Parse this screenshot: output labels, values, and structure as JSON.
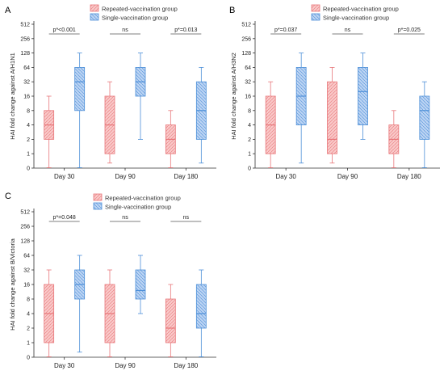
{
  "legend": {
    "repeated": "Repeated-vaccination group",
    "single": "Single-vaccination group"
  },
  "colors": {
    "repeated_fill": "#f9c9c9",
    "repeated_stroke": "#e8777a",
    "single_fill": "#bcd4f3",
    "single_stroke": "#4d8fd8",
    "axis": "#333333"
  },
  "chart_data": [
    {
      "panel": "A",
      "type": "box",
      "ylabel": "HAI fold change against A/H1N1",
      "yscale": "log2",
      "ylim": [
        0,
        512
      ],
      "yticks": [
        "0",
        "1",
        "2",
        "4",
        "8",
        "16",
        "32",
        "64",
        "128",
        "256",
        "512"
      ],
      "categories": [
        "Day 30",
        "Day 90",
        "Day 180"
      ],
      "series": [
        {
          "name": "Repeated-vaccination group",
          "boxes": [
            {
              "min": 0.03,
              "q1": 2,
              "median": 4,
              "q3": 8,
              "max": 16
            },
            {
              "min": 0.35,
              "q1": 1,
              "median": 4,
              "q3": 16,
              "max": 32
            },
            {
              "min": 0.03,
              "q1": 1,
              "median": 2,
              "q3": 4,
              "max": 8
            }
          ]
        },
        {
          "name": "Single-vaccination group",
          "boxes": [
            {
              "min": 0.03,
              "q1": 8,
              "median": 32,
              "q3": 64,
              "max": 128
            },
            {
              "min": 2,
              "q1": 16,
              "median": 32,
              "q3": 64,
              "max": 128
            },
            {
              "min": 0.35,
              "q1": 2,
              "median": 8,
              "q3": 32,
              "max": 64
            }
          ]
        }
      ],
      "annotations": [
        "p*<0.001",
        "ns",
        "p*=0.013"
      ]
    },
    {
      "panel": "B",
      "type": "box",
      "ylabel": "HAI fold change against A/H3N2",
      "yscale": "log2",
      "ylim": [
        0,
        512
      ],
      "yticks": [
        "0",
        "1",
        "2",
        "4",
        "8",
        "16",
        "32",
        "64",
        "128",
        "256",
        "512"
      ],
      "categories": [
        "Day 30",
        "Day 90",
        "Day 180"
      ],
      "series": [
        {
          "name": "Repeated-vaccination group",
          "boxes": [
            {
              "min": 0.03,
              "q1": 1,
              "median": 4,
              "q3": 16,
              "max": 32
            },
            {
              "min": 0.35,
              "q1": 1,
              "median": 2,
              "q3": 32,
              "max": 64
            },
            {
              "min": 0.03,
              "q1": 1,
              "median": 2,
              "q3": 4,
              "max": 8
            }
          ]
        },
        {
          "name": "Single-vaccination group",
          "boxes": [
            {
              "min": 0.35,
              "q1": 4,
              "median": 16,
              "q3": 64,
              "max": 128
            },
            {
              "min": 2,
              "q1": 4,
              "median": 20,
              "q3": 64,
              "max": 128
            },
            {
              "min": 0.03,
              "q1": 2,
              "median": 8,
              "q3": 16,
              "max": 32
            }
          ]
        }
      ],
      "annotations": [
        "p*=0.037",
        "ns",
        "p*=0.025"
      ]
    },
    {
      "panel": "C",
      "type": "box",
      "ylabel": "HAI fold change against B/Victoria",
      "yscale": "log2",
      "ylim": [
        0,
        512
      ],
      "yticks": [
        "0",
        "1",
        "2",
        "4",
        "8",
        "16",
        "32",
        "64",
        "128",
        "256",
        "512"
      ],
      "categories": [
        "Day 30",
        "Day 90",
        "Day 180"
      ],
      "series": [
        {
          "name": "Repeated-vaccination group",
          "boxes": [
            {
              "min": 0.03,
              "q1": 1,
              "median": 4,
              "q3": 16,
              "max": 32
            },
            {
              "min": 0.03,
              "q1": 1,
              "median": 4,
              "q3": 16,
              "max": 32
            },
            {
              "min": 0.03,
              "q1": 1,
              "median": 2,
              "q3": 8,
              "max": 16
            }
          ]
        },
        {
          "name": "Single-vaccination group",
          "boxes": [
            {
              "min": 0.35,
              "q1": 8,
              "median": 16,
              "q3": 32,
              "max": 64
            },
            {
              "min": 4,
              "q1": 8,
              "median": 12,
              "q3": 32,
              "max": 64
            },
            {
              "min": 0.03,
              "q1": 2,
              "median": 4,
              "q3": 16,
              "max": 32
            }
          ]
        }
      ],
      "annotations": [
        "p*=0.048",
        "ns",
        "ns"
      ]
    }
  ]
}
